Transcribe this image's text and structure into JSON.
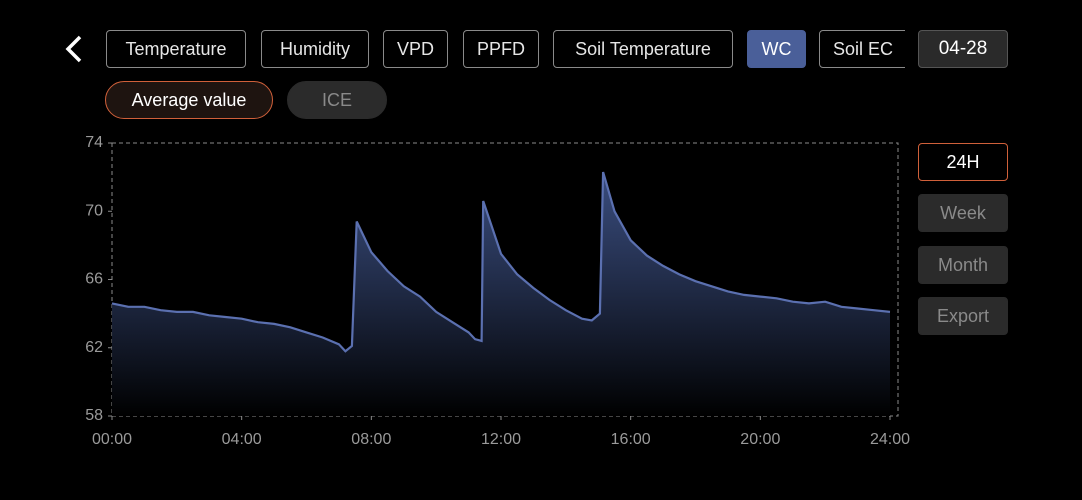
{
  "tabs": [
    "Temperature",
    "Humidity",
    "VPD",
    "PPFD",
    "Soil Temperature",
    "WC",
    "Soil EC"
  ],
  "date": "04-28",
  "modes": [
    "Average value",
    "ICE"
  ],
  "ranges": [
    "24H",
    "Week",
    "Month",
    "Export"
  ],
  "chart_data": {
    "type": "area",
    "color": "#5b70b0",
    "x": [
      0,
      0.5,
      1,
      1.5,
      2,
      2.5,
      3,
      3.5,
      4,
      4.5,
      5,
      5.5,
      6,
      6.5,
      7,
      7.2,
      7.4,
      7.55,
      8,
      8.5,
      9,
      9.5,
      10,
      10.5,
      11,
      11.2,
      11.4,
      11.45,
      12,
      12.5,
      13,
      13.5,
      14,
      14.5,
      14.8,
      15.05,
      15.15,
      15.5,
      16,
      16.5,
      17,
      17.5,
      18,
      18.5,
      19,
      19.5,
      20,
      20.5,
      21,
      21.5,
      22,
      22.5,
      23,
      23.5,
      24
    ],
    "values": [
      64.6,
      64.4,
      64.4,
      64.2,
      64.1,
      64.1,
      63.9,
      63.8,
      63.7,
      63.5,
      63.4,
      63.2,
      62.9,
      62.6,
      62.2,
      61.8,
      62.1,
      69.4,
      67.6,
      66.5,
      65.6,
      65.0,
      64.1,
      63.5,
      62.9,
      62.5,
      62.4,
      70.6,
      67.5,
      66.3,
      65.5,
      64.8,
      64.2,
      63.7,
      63.6,
      64.0,
      72.3,
      70.0,
      68.3,
      67.4,
      66.8,
      66.3,
      65.9,
      65.6,
      65.3,
      65.1,
      65.0,
      64.9,
      64.7,
      64.6,
      64.7,
      64.4,
      64.3,
      64.2,
      64.1
    ],
    "xlim": [
      0,
      24
    ],
    "xticks": [
      {
        "value": 0,
        "label": "00:00"
      },
      {
        "value": 4,
        "label": "04:00"
      },
      {
        "value": 8,
        "label": "08:00"
      },
      {
        "value": 12,
        "label": "12:00"
      },
      {
        "value": 16,
        "label": "16:00"
      },
      {
        "value": 20,
        "label": "20:00"
      },
      {
        "value": 24,
        "label": "24:00"
      }
    ],
    "ylim": [
      58,
      74
    ],
    "yticks": [
      58,
      62,
      66,
      70,
      74
    ]
  }
}
